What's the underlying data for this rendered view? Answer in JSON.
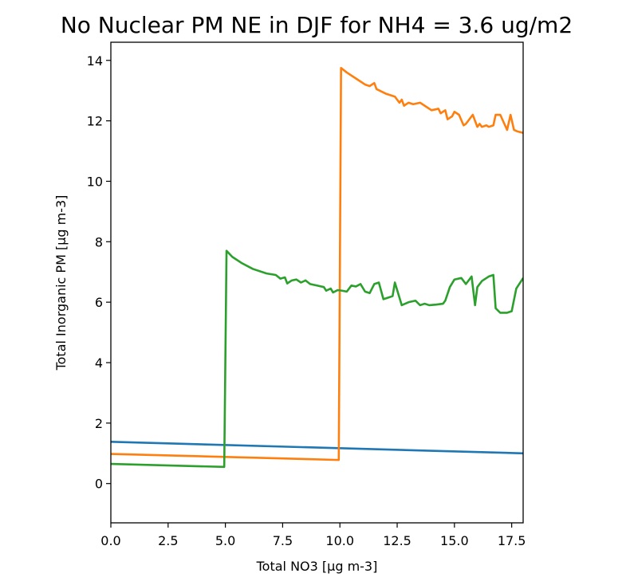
{
  "chart_data": {
    "type": "line",
    "title": "No Nuclear PM NE in DJF for NH4 = 3.6 ug/m2",
    "xlabel": "Total NO3 [µg m-3]",
    "ylabel": "Total Inorganic PM [µg m-3]",
    "xlim": [
      0,
      18
    ],
    "ylim": [
      -1.3,
      14.6
    ],
    "xticks": [
      0.0,
      2.5,
      5.0,
      7.5,
      10.0,
      12.5,
      15.0,
      17.5
    ],
    "xtick_labels": [
      "0.0",
      "2.5",
      "5.0",
      "7.5",
      "10.0",
      "12.5",
      "15.0",
      "17.5"
    ],
    "yticks": [
      0,
      2,
      4,
      6,
      8,
      10,
      12,
      14
    ],
    "ytick_labels": [
      "0",
      "2",
      "4",
      "6",
      "8",
      "10",
      "12",
      "14"
    ],
    "grid": false,
    "series": [
      {
        "color": "#1f77b4",
        "x": [
          0,
          18
        ],
        "y": [
          1.38,
          1.0
        ]
      },
      {
        "color": "#ff7f0e",
        "x": [
          0,
          9.95,
          10.05,
          10.3,
          10.7,
          11.1,
          11.3,
          11.5,
          11.6,
          12.0,
          12.4,
          12.6,
          12.7,
          12.8,
          13.0,
          13.2,
          13.5,
          13.7,
          14.0,
          14.3,
          14.4,
          14.6,
          14.7,
          14.9,
          15.0,
          15.2,
          15.4,
          15.5,
          15.6,
          15.8,
          16.0,
          16.1,
          16.2,
          16.4,
          16.5,
          16.7,
          16.8,
          17.0,
          17.3,
          17.45,
          17.6,
          17.75,
          18.0
        ],
        "y": [
          0.98,
          0.78,
          13.75,
          13.6,
          13.4,
          13.2,
          13.15,
          13.25,
          13.05,
          12.9,
          12.8,
          12.6,
          12.7,
          12.5,
          12.6,
          12.55,
          12.6,
          12.5,
          12.35,
          12.4,
          12.25,
          12.35,
          12.05,
          12.15,
          12.3,
          12.2,
          11.85,
          11.9,
          12.0,
          12.2,
          11.8,
          11.9,
          11.8,
          11.85,
          11.8,
          11.85,
          12.2,
          12.2,
          11.7,
          12.2,
          11.7,
          11.65,
          11.6
        ]
      },
      {
        "color": "#2ca02c",
        "x": [
          0,
          4.95,
          5.05,
          5.3,
          5.7,
          6.2,
          6.8,
          7.2,
          7.4,
          7.6,
          7.7,
          7.9,
          8.1,
          8.3,
          8.5,
          8.7,
          9.0,
          9.3,
          9.4,
          9.6,
          9.7,
          9.9,
          10.1,
          10.3,
          10.5,
          10.7,
          10.9,
          11.1,
          11.3,
          11.5,
          11.7,
          11.9,
          12.1,
          12.3,
          12.4,
          12.7,
          13.0,
          13.3,
          13.5,
          13.7,
          13.9,
          14.2,
          14.5,
          14.6,
          14.8,
          15.0,
          15.3,
          15.5,
          15.6,
          15.75,
          15.9,
          16.0,
          16.2,
          16.5,
          16.7,
          16.8,
          17.0,
          17.3,
          17.5,
          17.7,
          18.0
        ],
        "y": [
          0.65,
          0.55,
          7.7,
          7.5,
          7.3,
          7.1,
          6.95,
          6.9,
          6.78,
          6.82,
          6.62,
          6.72,
          6.75,
          6.65,
          6.72,
          6.6,
          6.55,
          6.5,
          6.38,
          6.45,
          6.32,
          6.4,
          6.38,
          6.35,
          6.55,
          6.52,
          6.6,
          6.35,
          6.3,
          6.6,
          6.65,
          6.1,
          6.15,
          6.2,
          6.65,
          5.9,
          6.0,
          6.05,
          5.9,
          5.95,
          5.9,
          5.92,
          5.95,
          6.05,
          6.5,
          6.75,
          6.8,
          6.6,
          6.7,
          6.85,
          5.9,
          6.5,
          6.7,
          6.85,
          6.9,
          5.8,
          5.65,
          5.65,
          5.7,
          6.45,
          6.8
        ]
      }
    ]
  }
}
